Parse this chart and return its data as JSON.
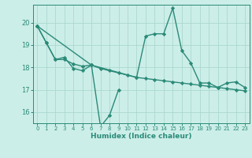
{
  "xlabel": "Humidex (Indice chaleur)",
  "x_values": [
    0,
    1,
    2,
    3,
    4,
    5,
    6,
    7,
    8,
    9,
    10,
    11,
    12,
    13,
    14,
    15,
    16,
    17,
    18,
    19,
    20,
    21,
    22,
    23
  ],
  "line1_y": [
    19.85,
    19.1,
    18.35,
    18.45,
    17.95,
    17.85,
    18.1,
    15.35,
    15.85,
    17.0,
    null,
    null,
    null,
    null,
    null,
    null,
    null,
    null,
    null,
    null,
    null,
    null,
    null,
    null
  ],
  "line2_y": [
    19.85,
    null,
    null,
    null,
    null,
    null,
    18.1,
    null,
    null,
    null,
    null,
    17.55,
    19.4,
    19.5,
    19.5,
    20.65,
    18.75,
    18.2,
    17.3,
    17.3,
    17.1,
    17.3,
    17.35,
    17.1
  ],
  "line3_y": [
    19.85,
    19.1,
    18.35,
    18.35,
    18.15,
    18.05,
    18.1,
    17.95,
    17.85,
    17.75,
    17.65,
    17.55,
    17.5,
    17.45,
    17.4,
    17.35,
    17.3,
    17.25,
    17.2,
    17.15,
    17.1,
    17.05,
    17.0,
    16.95
  ],
  "ylim": [
    15.5,
    20.8
  ],
  "yticks": [
    16,
    17,
    18,
    19,
    20
  ],
  "xticks": [
    0,
    1,
    2,
    3,
    4,
    5,
    6,
    7,
    8,
    9,
    10,
    11,
    12,
    13,
    14,
    15,
    16,
    17,
    18,
    19,
    20,
    21,
    22,
    23
  ],
  "line_color": "#2a8a78",
  "bg_color": "#cceee8",
  "grid_color": "#aad8d0",
  "marker": "D",
  "marker_size": 2.2,
  "linewidth": 1.0
}
